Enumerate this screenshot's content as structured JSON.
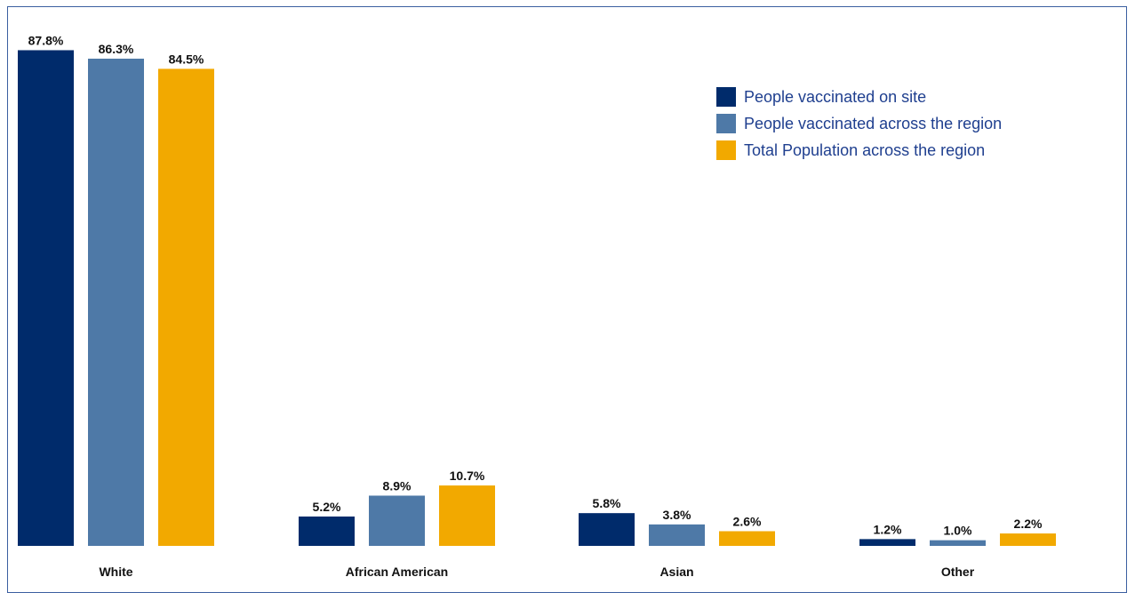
{
  "chart_data": {
    "type": "bar",
    "categories": [
      "White",
      "African American",
      "Asian",
      "Other"
    ],
    "series": [
      {
        "name": "People vaccinated on site",
        "values": [
          87.8,
          5.2,
          5.8,
          1.2
        ],
        "labels": [
          "87.8%",
          "5.2%",
          "5.8%",
          "1.2%"
        ],
        "color": "#002b6b"
      },
      {
        "name": "People vaccinated across the region",
        "values": [
          86.3,
          8.9,
          3.8,
          1.0
        ],
        "labels": [
          "86.3%",
          "8.9%",
          "3.8%",
          "1.0%"
        ],
        "color": "#4e79a7"
      },
      {
        "name": "Total Population across the region",
        "values": [
          84.5,
          10.7,
          2.6,
          2.2
        ],
        "labels": [
          "84.5%",
          "10.7%",
          "2.6%",
          "2.2%"
        ],
        "color": "#f2a900"
      }
    ],
    "ylim": [
      0,
      100
    ],
    "grid": false,
    "legend_position": "top-right"
  }
}
